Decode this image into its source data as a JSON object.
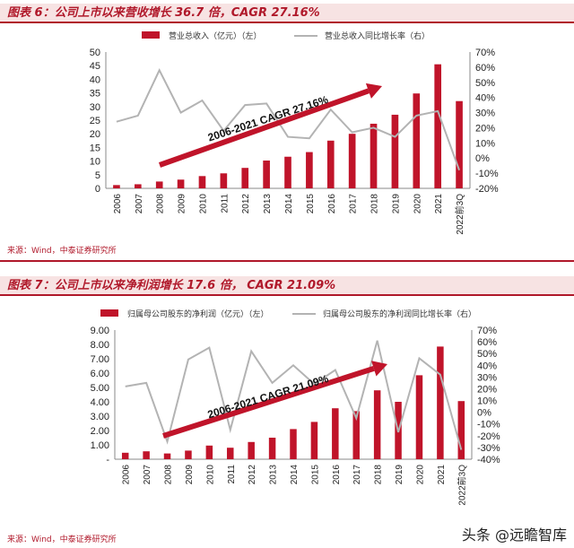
{
  "figures": [
    {
      "title": "图表 6：公司上市以来营收增长 36.7 倍，CAGR 27.16%",
      "source": "来源：Wind，中泰证券研究所"
    },
    {
      "title": "图表 7：公司上市以来净利润增长 17.6 倍，  CAGR 21.09%",
      "source": "来源：Wind，中泰证券研究所"
    }
  ],
  "watermark": "头条 @远瞻智库",
  "colors": {
    "bar": "#c0142a",
    "line": "#b3b3b3",
    "title": "#b0182a",
    "title_bg": "#f7e3e3"
  },
  "chart_data": [
    {
      "type": "bar",
      "categories": [
        "2006",
        "2007",
        "2008",
        "2009",
        "2010",
        "2011",
        "2012",
        "2013",
        "2014",
        "2015",
        "2016",
        "2017",
        "2018",
        "2019",
        "2020",
        "2021",
        "2022前3Q"
      ],
      "series": [
        {
          "name": "营业总收入（亿元）（左）",
          "type": "bar",
          "axis": "left",
          "values": [
            1.2,
            1.5,
            2.5,
            3.2,
            4.5,
            5.5,
            7.5,
            10.2,
            11.6,
            13.3,
            17.5,
            20,
            23.7,
            27,
            34.8,
            45.5,
            32
          ]
        },
        {
          "name": "营业总收入同比增长率（右）",
          "type": "line",
          "axis": "right",
          "values": [
            24,
            28,
            58,
            30,
            38,
            18,
            35,
            36,
            14,
            13,
            32,
            17,
            20,
            14,
            28,
            31,
            -8
          ]
        }
      ],
      "y_left": {
        "ylim": [
          0,
          50
        ],
        "ticks": [
          "0",
          "5",
          "10",
          "15",
          "20",
          "25",
          "30",
          "35",
          "40",
          "45",
          "50"
        ]
      },
      "y_right": {
        "ylim": [
          -20,
          70
        ],
        "ticks": [
          "-20%",
          "-10%",
          "0%",
          "10%",
          "20%",
          "30%",
          "40%",
          "50%",
          "60%",
          "70%"
        ]
      },
      "annotation": "2006-2021 CAGR 27.16%",
      "legend": "top"
    },
    {
      "type": "bar",
      "categories": [
        "2006",
        "2007",
        "2008",
        "2009",
        "2010",
        "2011",
        "2012",
        "2013",
        "2014",
        "2015",
        "2016",
        "2017",
        "2018",
        "2019",
        "2020",
        "2021",
        "2022前3Q"
      ],
      "series": [
        {
          "name": "归属母公司股东的净利润（亿元）（左）",
          "type": "bar",
          "axis": "left",
          "values": [
            0.45,
            0.55,
            0.4,
            0.6,
            0.95,
            0.8,
            1.2,
            1.5,
            2.1,
            2.6,
            3.55,
            3.35,
            4.8,
            4.0,
            5.85,
            7.85,
            4.05
          ]
        },
        {
          "name": "归属母公司股东的净利润同比增长率（右）",
          "type": "line",
          "axis": "right",
          "values": [
            22,
            25,
            -25,
            45,
            55,
            -15,
            52,
            25,
            40,
            24,
            36,
            -5,
            61,
            -17,
            46,
            32,
            -32
          ]
        }
      ],
      "y_left": {
        "ylim": [
          0,
          9
        ],
        "ticks": [
          "-",
          "1.00",
          "2.00",
          "3.00",
          "4.00",
          "5.00",
          "6.00",
          "7.00",
          "8.00",
          "9.00"
        ]
      },
      "y_right": {
        "ylim": [
          -40,
          70
        ],
        "ticks": [
          "-40%",
          "-30%",
          "-20%",
          "-10%",
          "0%",
          "10%",
          "20%",
          "30%",
          "40%",
          "50%",
          "60%",
          "70%"
        ]
      },
      "annotation": "2006-2021 CAGR 21.09%",
      "legend": "top"
    }
  ]
}
